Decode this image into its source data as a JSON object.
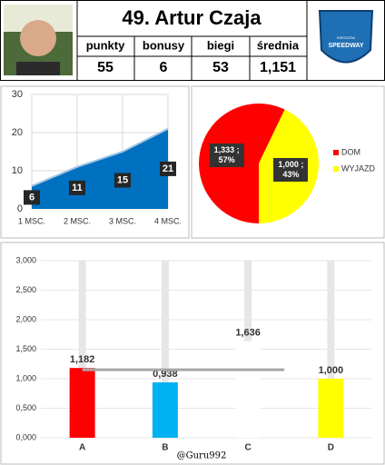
{
  "header": {
    "title": "49. Artur Czaja",
    "columns": [
      "punkty",
      "bonusy",
      "biegi",
      "średnia"
    ],
    "values": [
      55,
      6,
      53,
      "1,151"
    ],
    "logo": {
      "top": "RZESZÓW",
      "main": "SPEEDWAY"
    }
  },
  "chart_data": [
    {
      "type": "area",
      "categories": [
        "1 MSC.",
        "2 MSC.",
        "3 MSC.",
        "4 MSC."
      ],
      "values": [
        6,
        11,
        15,
        21
      ],
      "color": "#0070c0",
      "ylim": [
        0,
        30
      ],
      "yticks": [
        0,
        10,
        20,
        30
      ],
      "grid": true
    },
    {
      "type": "pie",
      "categories": [
        "DOM",
        "WYJAZD"
      ],
      "values": [
        1.333,
        1.0
      ],
      "value_labels": [
        "1,333 ; 57%",
        "1,000 ; 43%"
      ],
      "colors": [
        "#ff0000",
        "#ffff00"
      ],
      "legend": "right"
    },
    {
      "type": "bar",
      "categories": [
        "A",
        "B",
        "C",
        "D"
      ],
      "values": [
        1.182,
        0.938,
        1.636,
        1.0
      ],
      "value_labels": [
        "1,182",
        "0,938",
        "1,636",
        "1,000"
      ],
      "colors": [
        "#ff0000",
        "#00b0f0",
        "#ffffff",
        "#ffff00"
      ],
      "ylim": [
        0,
        3
      ],
      "yticks": [
        {
          "value": 0,
          "label": "0,000"
        },
        {
          "value": 0.5,
          "label": "0,500"
        },
        {
          "value": 1,
          "label": "1,000"
        },
        {
          "value": 1.5,
          "label": "1,500"
        },
        {
          "value": 2,
          "label": "2,000"
        },
        {
          "value": 2.5,
          "label": "2,500"
        },
        {
          "value": 3,
          "label": "3,000"
        }
      ],
      "reference_line": 1.151,
      "grid": true,
      "footer": "@Guru992"
    }
  ]
}
